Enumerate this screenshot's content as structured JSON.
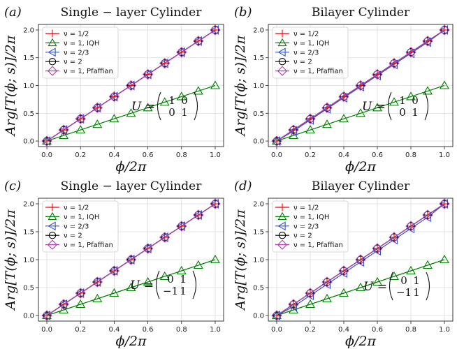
{
  "chart_data": [
    {
      "type": "line",
      "panel_label": "(a)",
      "title": "Single − layer Cylinder",
      "xlabel": "ϕ/2π",
      "ylabel": "Arg[T(ϕ; s)]/2π",
      "xlim": [
        -0.05,
        1.05
      ],
      "ylim": [
        -0.1,
        2.1
      ],
      "x_ticks": [
        "0.0",
        "0.2",
        "0.4",
        "0.6",
        "0.8",
        "1.0"
      ],
      "y_ticks": [
        "0.0",
        "0.5",
        "1.0",
        "1.5",
        "2.0"
      ],
      "grid": true,
      "legend_position": "top-left",
      "annotation": {
        "prefix": "U =",
        "matrix": [
          [
            "1",
            "0"
          ],
          [
            "0",
            "1"
          ]
        ]
      },
      "x": [
        0.0,
        0.1,
        0.2,
        0.3,
        0.4,
        0.5,
        0.6,
        0.7,
        0.8,
        0.9,
        1.0
      ],
      "series": [
        {
          "name": "ν = 1/2",
          "color": "#ff0000",
          "marker": "plus",
          "values": [
            0.0,
            0.2,
            0.4,
            0.6,
            0.8,
            1.0,
            1.2,
            1.4,
            1.6,
            1.8,
            2.0
          ]
        },
        {
          "name": "ν = 1, IQH",
          "color": "#008000",
          "marker": "triangle-up",
          "values": [
            0.0,
            0.1,
            0.2,
            0.3,
            0.4,
            0.5,
            0.6,
            0.7,
            0.8,
            0.9,
            1.0
          ]
        },
        {
          "name": "ν = 2/3",
          "color": "#3355cc",
          "marker": "triangle-left",
          "values": [
            0.0,
            0.2,
            0.4,
            0.6,
            0.8,
            1.0,
            1.2,
            1.4,
            1.6,
            1.8,
            2.0
          ]
        },
        {
          "name": "ν = 2",
          "color": "#000000",
          "marker": "circle",
          "values": [
            0.0,
            0.2,
            0.4,
            0.6,
            0.8,
            1.0,
            1.2,
            1.4,
            1.6,
            1.8,
            2.0
          ]
        },
        {
          "name": "ν = 1,  Pfaffian",
          "color": "#b040b0",
          "marker": "diamond",
          "values": [
            0.0,
            0.2,
            0.4,
            0.6,
            0.8,
            1.0,
            1.2,
            1.4,
            1.6,
            1.8,
            2.0
          ]
        }
      ]
    },
    {
      "type": "line",
      "panel_label": "(b)",
      "title": "Bilayer Cylinder",
      "xlabel": "ϕ/2π",
      "ylabel": "Arg[T(ϕ; s)]/2π",
      "xlim": [
        -0.05,
        1.05
      ],
      "ylim": [
        -0.1,
        2.1
      ],
      "x_ticks": [
        "0.0",
        "0.2",
        "0.4",
        "0.6",
        "0.8",
        "1.0"
      ],
      "y_ticks": [
        "0.0",
        "0.5",
        "1.0",
        "1.5",
        "2.0"
      ],
      "grid": true,
      "legend_position": "top-left",
      "annotation": {
        "prefix": "U =",
        "matrix": [
          [
            "1",
            "0"
          ],
          [
            "0",
            "1"
          ]
        ]
      },
      "x": [
        0.0,
        0.1,
        0.2,
        0.3,
        0.4,
        0.5,
        0.6,
        0.7,
        0.8,
        0.9,
        1.0
      ],
      "series": [
        {
          "name": "ν = 1/2",
          "color": "#ff0000",
          "marker": "plus",
          "values": [
            0.0,
            0.2,
            0.4,
            0.6,
            0.8,
            1.0,
            1.2,
            1.4,
            1.6,
            1.8,
            2.0
          ]
        },
        {
          "name": "ν = 1, IQH",
          "color": "#008000",
          "marker": "triangle-up",
          "values": [
            0.0,
            0.1,
            0.2,
            0.3,
            0.4,
            0.5,
            0.6,
            0.7,
            0.8,
            0.9,
            1.0
          ]
        },
        {
          "name": "ν = 2/3",
          "color": "#3355cc",
          "marker": "triangle-left",
          "values": [
            0.0,
            0.18,
            0.38,
            0.58,
            0.78,
            0.98,
            1.18,
            1.38,
            1.58,
            1.78,
            2.0
          ]
        },
        {
          "name": "ν = 2",
          "color": "#000000",
          "marker": "circle",
          "values": [
            0.0,
            0.2,
            0.4,
            0.6,
            0.8,
            1.0,
            1.2,
            1.4,
            1.6,
            1.8,
            2.0
          ]
        },
        {
          "name": "ν = 1,  Pfaffian",
          "color": "#b040b0",
          "marker": "diamond",
          "values": [
            0.0,
            0.2,
            0.4,
            0.6,
            0.8,
            1.0,
            1.2,
            1.4,
            1.6,
            1.8,
            2.0
          ]
        }
      ]
    },
    {
      "type": "line",
      "panel_label": "(c)",
      "title": "Single − layer Cylinder",
      "xlabel": "ϕ/2π",
      "ylabel": "Arg[T(ϕ; s)]/2π",
      "xlim": [
        -0.05,
        1.05
      ],
      "ylim": [
        -0.1,
        2.1
      ],
      "x_ticks": [
        "0.0",
        "0.2",
        "0.4",
        "0.6",
        "0.8",
        "1.0"
      ],
      "y_ticks": [
        "0.0",
        "0.5",
        "1.0",
        "1.5",
        "2.0"
      ],
      "grid": true,
      "legend_position": "top-left",
      "annotation": {
        "prefix": "U =",
        "matrix": [
          [
            "0",
            "1"
          ],
          [
            "−1",
            "1"
          ]
        ]
      },
      "x": [
        0.0,
        0.1,
        0.2,
        0.3,
        0.4,
        0.5,
        0.6,
        0.7,
        0.8,
        0.9,
        1.0
      ],
      "series": [
        {
          "name": "ν = 1/2",
          "color": "#ff0000",
          "marker": "plus",
          "values": [
            0.0,
            0.2,
            0.4,
            0.6,
            0.8,
            1.0,
            1.2,
            1.4,
            1.6,
            1.8,
            2.0
          ]
        },
        {
          "name": "ν = 1, IQH",
          "color": "#008000",
          "marker": "triangle-up",
          "values": [
            0.0,
            0.1,
            0.2,
            0.3,
            0.4,
            0.5,
            0.6,
            0.7,
            0.8,
            0.9,
            1.0
          ]
        },
        {
          "name": "ν = 2/3",
          "color": "#3355cc",
          "marker": "triangle-left",
          "values": [
            0.0,
            0.2,
            0.4,
            0.6,
            0.8,
            1.0,
            1.2,
            1.4,
            1.6,
            1.8,
            2.0
          ]
        },
        {
          "name": "ν = 2",
          "color": "#000000",
          "marker": "circle",
          "values": [
            0.0,
            0.2,
            0.4,
            0.6,
            0.8,
            1.0,
            1.2,
            1.4,
            1.6,
            1.8,
            2.0
          ]
        },
        {
          "name": "ν = 1,  Pfaffian",
          "color": "#b040b0",
          "marker": "diamond",
          "values": [
            0.0,
            0.2,
            0.4,
            0.6,
            0.8,
            1.0,
            1.2,
            1.4,
            1.6,
            1.8,
            2.0
          ]
        }
      ]
    },
    {
      "type": "line",
      "panel_label": "(d)",
      "title": "Bilayer Cylinder",
      "xlabel": "ϕ/2π",
      "ylabel": "Arg[T(ϕ; s)]/2π",
      "xlim": [
        -0.05,
        1.05
      ],
      "ylim": [
        -0.1,
        2.1
      ],
      "x_ticks": [
        "0.0",
        "0.2",
        "0.4",
        "0.6",
        "0.8",
        "1.0"
      ],
      "y_ticks": [
        "0.0",
        "0.5",
        "1.0",
        "1.5",
        "2.0"
      ],
      "grid": true,
      "legend_position": "top-left",
      "annotation": {
        "prefix": "U =",
        "matrix": [
          [
            "0",
            "1"
          ],
          [
            "−1",
            "1"
          ]
        ]
      },
      "x": [
        0.0,
        0.1,
        0.2,
        0.3,
        0.4,
        0.5,
        0.6,
        0.7,
        0.8,
        0.9,
        1.0
      ],
      "series": [
        {
          "name": "ν = 1/2",
          "color": "#ff0000",
          "marker": "plus",
          "values": [
            0.0,
            0.2,
            0.4,
            0.6,
            0.8,
            1.0,
            1.2,
            1.4,
            1.6,
            1.8,
            2.0
          ]
        },
        {
          "name": "ν = 1, IQH",
          "color": "#008000",
          "marker": "triangle-up",
          "values": [
            0.0,
            0.1,
            0.2,
            0.3,
            0.4,
            0.5,
            0.6,
            0.7,
            0.8,
            0.9,
            1.0
          ]
        },
        {
          "name": "ν = 2/3",
          "color": "#3355cc",
          "marker": "triangle-left",
          "values": [
            0.0,
            0.16,
            0.36,
            0.56,
            0.76,
            0.96,
            1.16,
            1.36,
            1.56,
            1.76,
            2.0
          ]
        },
        {
          "name": "ν = 2",
          "color": "#000000",
          "marker": "circle",
          "values": [
            0.0,
            0.2,
            0.4,
            0.6,
            0.8,
            1.0,
            1.2,
            1.4,
            1.6,
            1.8,
            2.0
          ]
        },
        {
          "name": "ν = 1,  Pfaffian",
          "color": "#b040b0",
          "marker": "diamond",
          "values": [
            0.0,
            0.2,
            0.4,
            0.6,
            0.8,
            1.0,
            1.2,
            1.4,
            1.6,
            1.8,
            2.0
          ]
        }
      ]
    }
  ]
}
